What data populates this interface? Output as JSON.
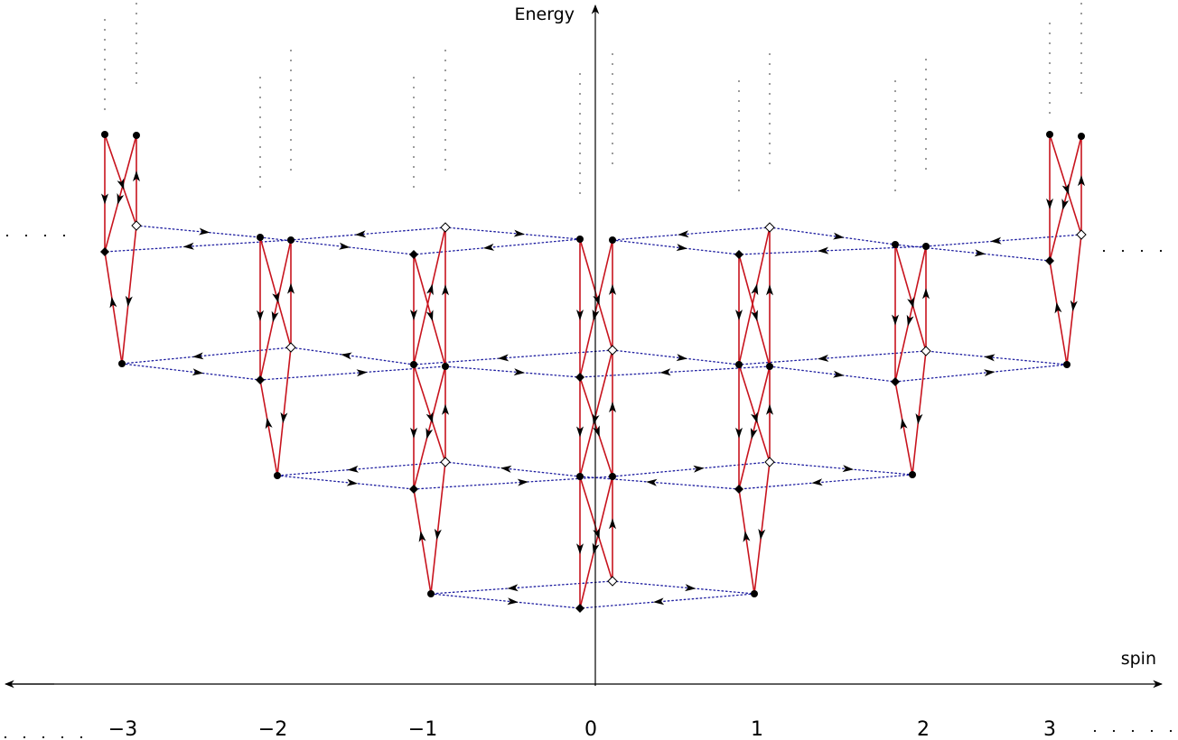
{
  "axes": {
    "x_label": "spin",
    "y_label": "Energy",
    "x_ticks": [
      "−3",
      "−2",
      "−1",
      "0",
      "1",
      "2",
      "3"
    ]
  },
  "colors": {
    "intra_column_transition": "#c8141e",
    "inter_column_transition": "#1e1ea0",
    "axis": "#000000",
    "ellipsis": "#555555"
  },
  "marker_types": [
    "filled-circle",
    "filled-diamond",
    "open-diamond"
  ]
}
